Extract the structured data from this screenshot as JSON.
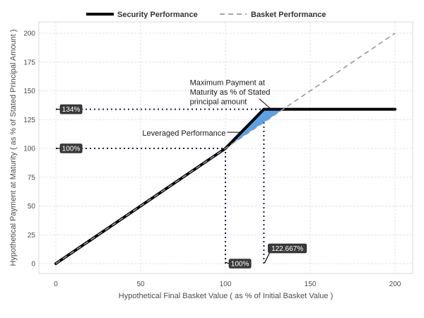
{
  "chart_data": {
    "type": "line",
    "xlabel": "Hypothetical Final Basket Value ( as % of Initial Basket Value )",
    "ylabel": "Hypothetical Payment at Maturity ( as % of Stated Principal Amount )",
    "xlim": [
      -10,
      210
    ],
    "ylim": [
      -15,
      212
    ],
    "x_ticks": [
      0,
      50,
      100,
      150,
      200
    ],
    "y_ticks": [
      0,
      25,
      50,
      75,
      100,
      125,
      150,
      175,
      200
    ],
    "grid": true,
    "legend_position": "top",
    "series": [
      {
        "name": "Security Performance",
        "style": "solid",
        "color": "#000000",
        "x": [
          0,
          100,
          122.667,
          200
        ],
        "y": [
          0,
          100,
          134,
          134
        ]
      },
      {
        "name": "Basket Performance",
        "style": "dashed",
        "color": "#999999",
        "x": [
          0,
          200
        ],
        "y": [
          0,
          200
        ]
      }
    ],
    "shaded_region": {
      "color": "#5aa2e8",
      "x": [
        100,
        122.667,
        134
      ],
      "y_top": [
        100,
        134,
        134
      ],
      "y_bottom": [
        100,
        122.667,
        134
      ]
    },
    "reference_lines": [
      {
        "orientation": "horizontal",
        "value": 134,
        "from": 0,
        "to": 122.667
      },
      {
        "orientation": "horizontal",
        "value": 100,
        "from": 0,
        "to": 100
      },
      {
        "orientation": "vertical",
        "value": 100,
        "from": 0,
        "to": 100
      },
      {
        "orientation": "vertical",
        "value": 122.667,
        "from": 0,
        "to": 134
      }
    ],
    "box_labels": [
      {
        "text": "134%",
        "x": 0,
        "y": 134
      },
      {
        "text": "100%",
        "x": 0,
        "y": 100
      },
      {
        "text": "100%",
        "x": 100,
        "y": 0
      },
      {
        "text": "122.667%",
        "x": 122.667,
        "y": 0
      }
    ],
    "annotations": [
      {
        "lines": [
          "Maximum Payment at",
          "Maturity as % of Stated",
          "principal amount"
        ],
        "text_at": [
          79,
          155
        ],
        "arrow_from": [
          120,
          143
        ],
        "arrow_to": [
          127,
          134
        ]
      },
      {
        "lines": [
          "Leveraged Performance"
        ],
        "text_at": [
          51,
          111
        ],
        "arrow_from": [
          101,
          114
        ],
        "arrow_to": [
          110,
          114
        ]
      }
    ]
  }
}
